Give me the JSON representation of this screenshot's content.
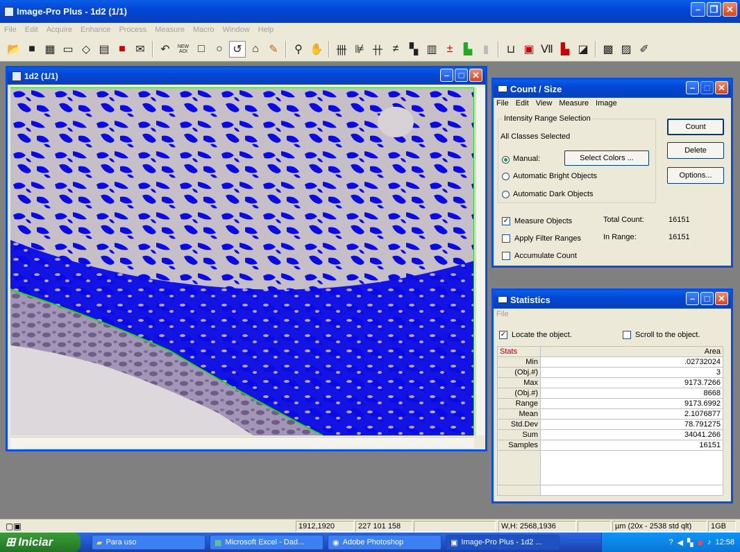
{
  "app": {
    "title": "Image-Pro Plus - 1d2 (1/1)"
  },
  "menubar": [
    "File",
    "Edit",
    "Acquire",
    "Enhance",
    "Process",
    "Measure",
    "Macro",
    "Window",
    "Help"
  ],
  "toolbar": {
    "icons": [
      "open-icon",
      "save-icon",
      "grid-icon",
      "camera-icon",
      "print-icon",
      "printer-icon",
      "book-icon",
      "envelope-icon",
      "undo-icon",
      "new-aoi-icon",
      "rectangle-aoi-icon",
      "ellipse-aoi-icon",
      "irregular-aoi-icon",
      "magic-wand-icon",
      "pencil-icon",
      "zoom-icon",
      "hand-icon",
      "histogram-icon",
      "profile-icon",
      "bitmap-icon",
      "align-icon",
      "count-icon",
      "grid-mask-icon",
      "calibration-icon",
      "colors-icon",
      "bars-icon",
      "line-profile-icon",
      "chart-icon",
      "red-chart-icon",
      "graph-icon",
      "filter-icon",
      "macro-icon",
      "edit-macro-icon"
    ],
    "new_aoi_label": "NEW AOI"
  },
  "image_window": {
    "title": "1d2 (1/1)"
  },
  "count_size": {
    "title": "Count / Size",
    "menu": [
      "File",
      "Edit",
      "View",
      "Measure",
      "Image"
    ],
    "group_title": "Intensity Range Selection",
    "all_classes": "All Classes Selected",
    "manual_label": "Manual:",
    "select_colors": "Select Colors ...",
    "auto_bright": "Automatic Bright Objects",
    "auto_dark": "Automatic Dark Objects",
    "count_btn": "Count",
    "delete_btn": "Delete",
    "options_btn": "Options...",
    "measure_objects": "Measure Objects",
    "apply_filter": "Apply Filter Ranges",
    "accumulate": "Accumulate Count",
    "total_count_label": "Total Count:",
    "total_count": "16151",
    "in_range_label": "In Range:",
    "in_range": "16151",
    "measure_checked": true,
    "filter_checked": false,
    "accumulate_checked": false
  },
  "statistics": {
    "title": "Statistics",
    "menu": "File",
    "locate": "Locate the object.",
    "scroll": "Scroll to the object.",
    "col_stats": "Stats",
    "col_area": "Area",
    "rows": [
      {
        "label": "Min",
        "value": ".02732024"
      },
      {
        "label": "(Obj.#)",
        "value": "3"
      },
      {
        "label": "Max",
        "value": "9173.7266"
      },
      {
        "label": "(Obj.#)",
        "value": "8668"
      },
      {
        "label": "Range",
        "value": "9173.6992"
      },
      {
        "label": "Mean",
        "value": "2.1076877"
      },
      {
        "label": "Std.Dev",
        "value": "78.791275"
      },
      {
        "label": "Sum",
        "value": "34041.266"
      },
      {
        "label": "Samples",
        "value": "16151"
      }
    ]
  },
  "statusbar": {
    "coords": "1912,1920",
    "rgb": "227 101 158",
    "wh": "W,H: 2568,1936",
    "units": "µm (20x - 2538 std qlt)",
    "mem": "1GB"
  },
  "taskbar": {
    "start": "Iniciar",
    "tasks": [
      "Para uso",
      "Microsoft Excel - Dad...",
      "Adobe Photoshop",
      "Image-Pro Plus - 1d2 ..."
    ],
    "clock": "12:58"
  },
  "colors": {
    "xp_blue": "#0a4ee0",
    "mask_blue": "#0a0ae6",
    "aoi_green": "#22d622",
    "tissue": "#c7bfc7"
  }
}
